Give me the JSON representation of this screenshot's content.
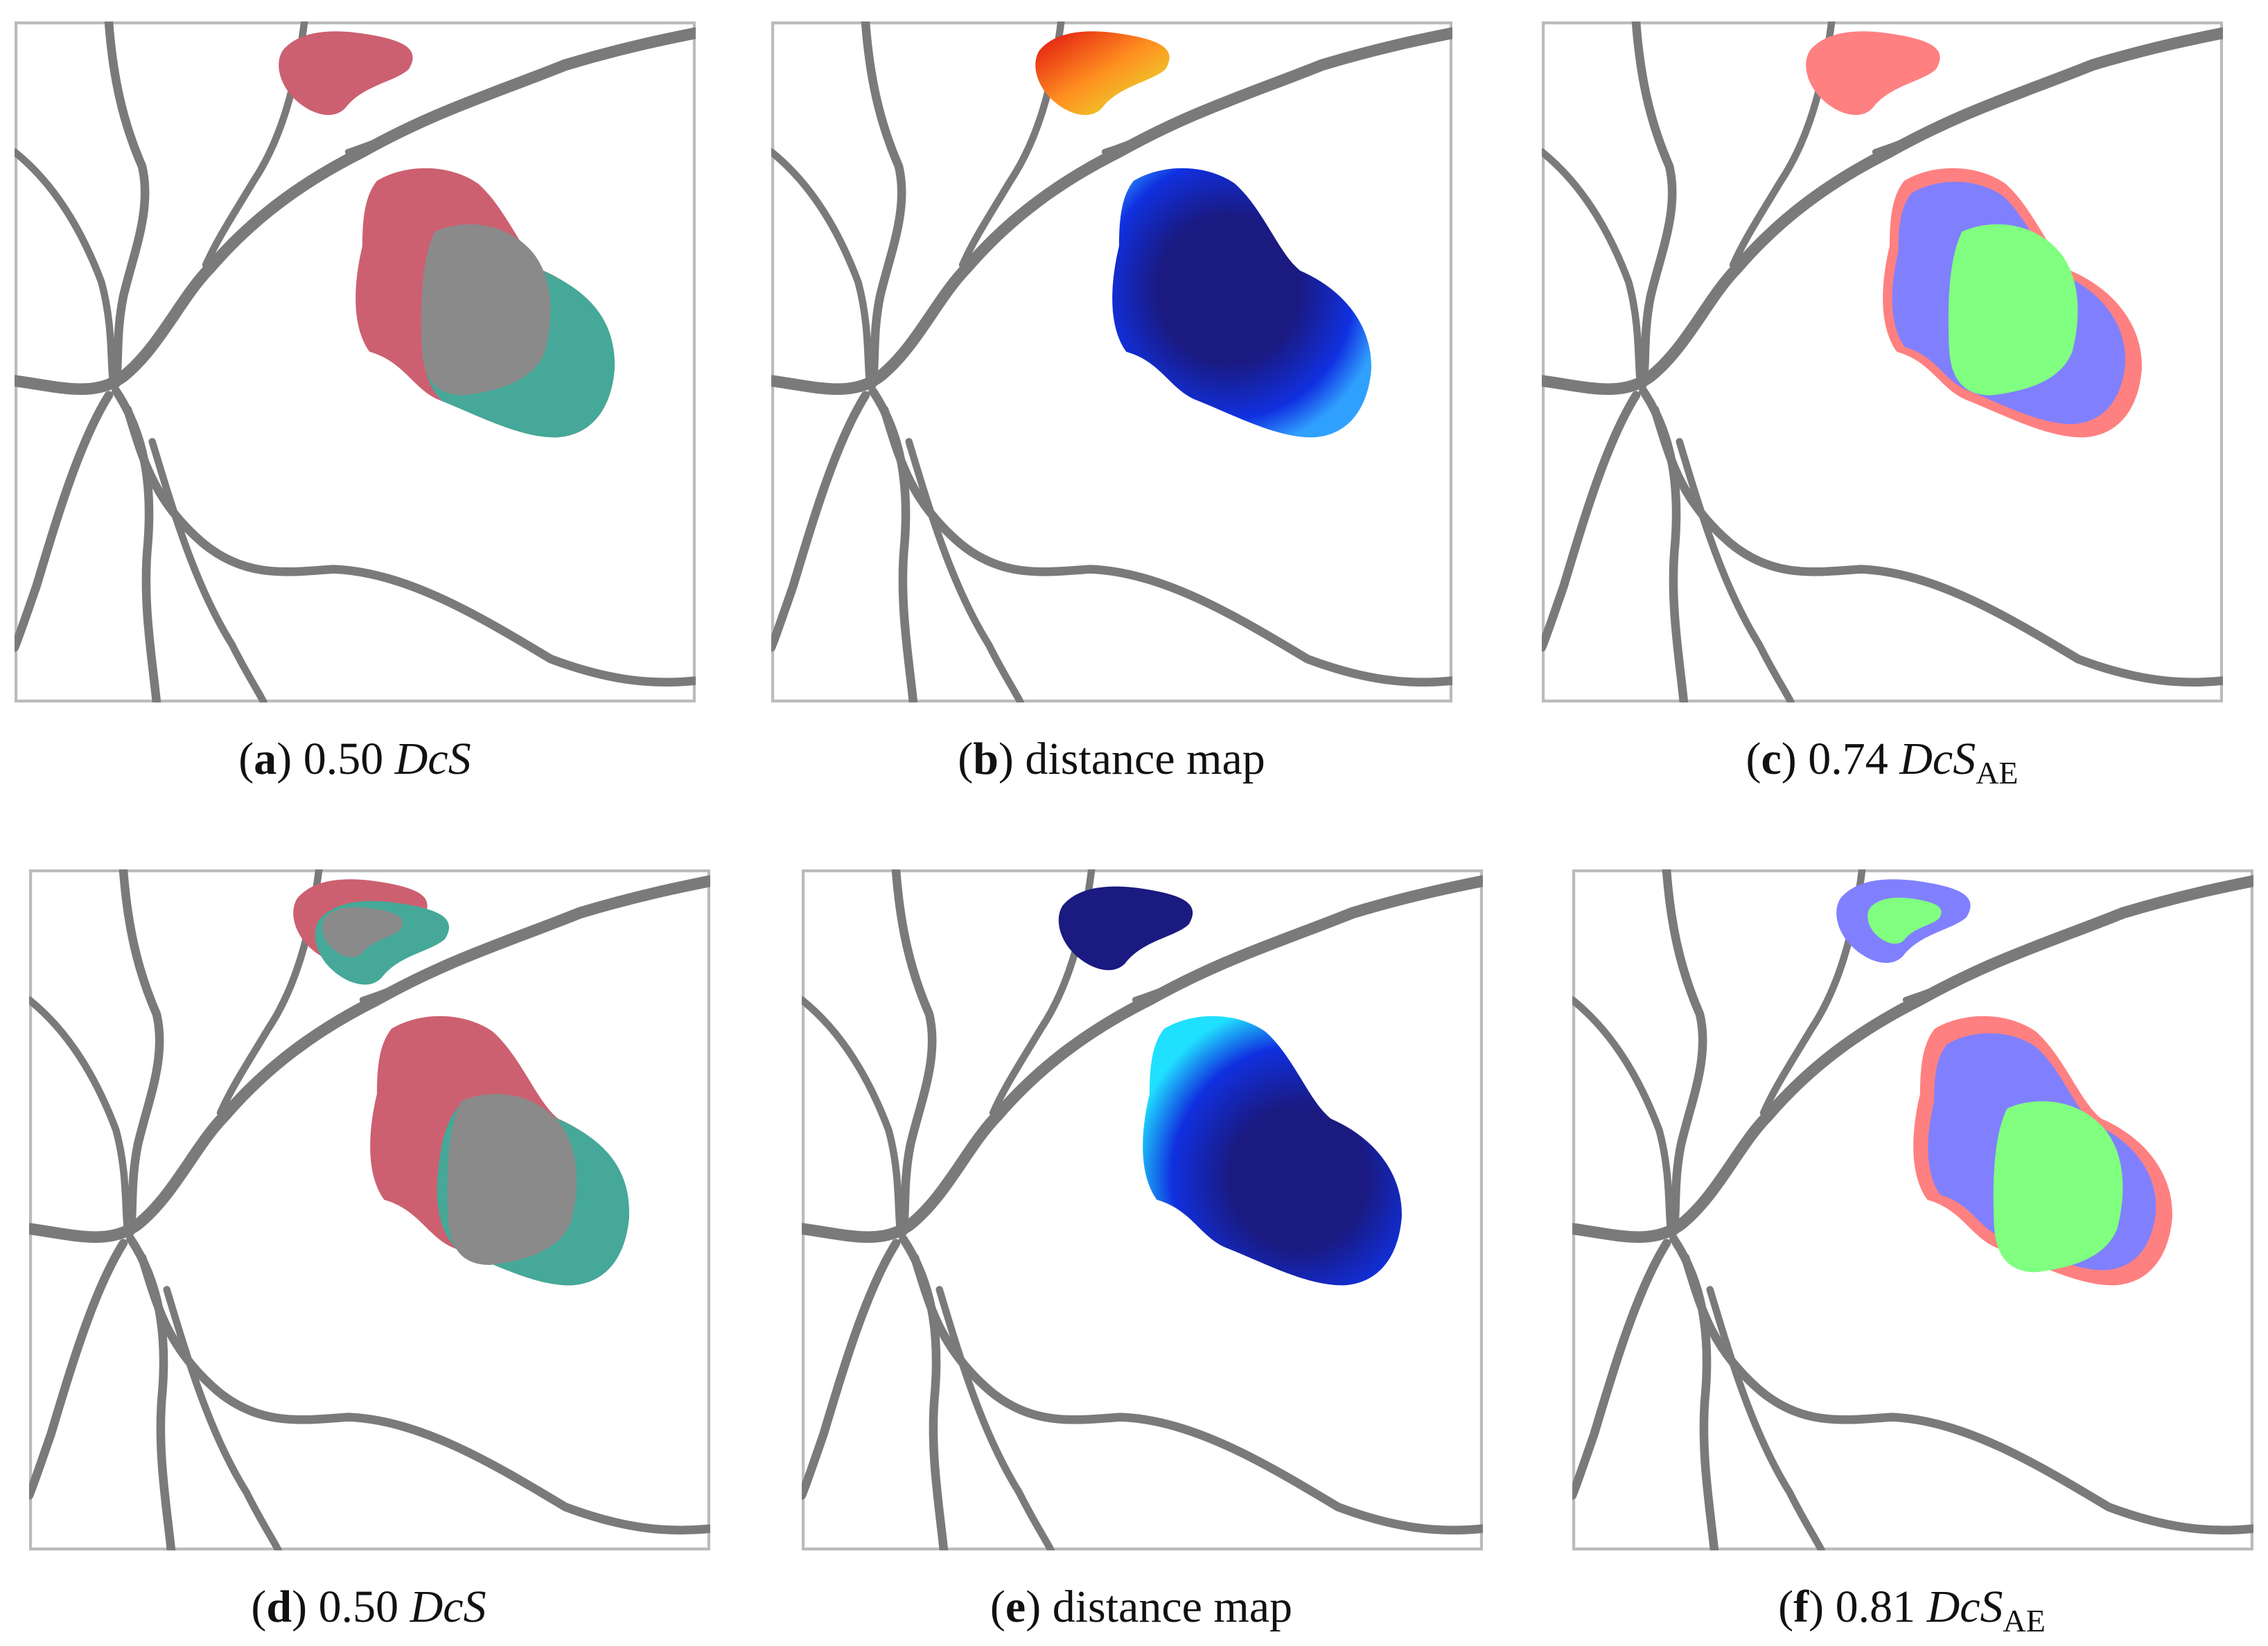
{
  "panels": [
    {
      "label_open": "(",
      "label": "a",
      "label_close": ")",
      "value": "0.50",
      "metric": "DcS"
    },
    {
      "label_open": "(",
      "label": "b",
      "label_close": ")",
      "text": "distance map"
    },
    {
      "label_open": "(",
      "label": "c",
      "label_close": ")",
      "value": "0.74",
      "metric": "DcS",
      "subscript": "AE"
    },
    {
      "label_open": "(",
      "label": "d",
      "label_close": ")",
      "value": "0.50",
      "metric": "DcS"
    },
    {
      "label_open": "(",
      "label": "e",
      "label_close": ")",
      "text": "distance map"
    },
    {
      "label_open": "(",
      "label": "f",
      "label_close": ")",
      "value": "0.81",
      "metric": "DcS",
      "subscript": "AE"
    }
  ]
}
